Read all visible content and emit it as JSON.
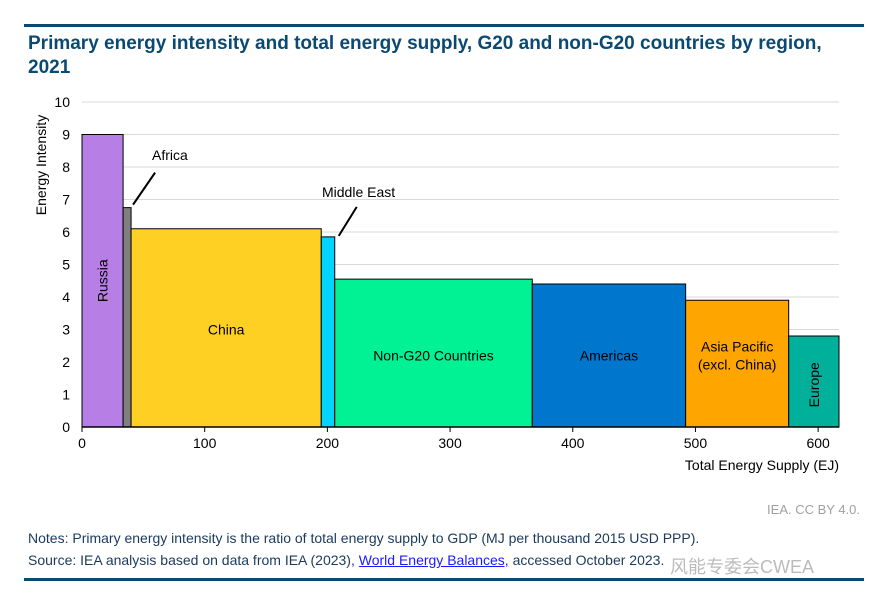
{
  "header": {
    "title": "Primary energy intensity and total energy supply, G20 and non-G20 countries by region, 2021"
  },
  "chart_data": {
    "type": "bar",
    "subtype": "variable-width (marimekko)",
    "title": "Primary energy intensity and total energy supply, G20 and non-G20 countries by region, 2021",
    "xlabel": "Total Energy Supply (EJ)",
    "ylabel": "Energy Intensity",
    "xlim": [
      0,
      617
    ],
    "ylim": [
      0,
      10
    ],
    "xticks": [
      0,
      100,
      200,
      300,
      400,
      500,
      600
    ],
    "yticks": [
      0,
      1,
      2,
      3,
      4,
      5,
      6,
      7,
      8,
      9,
      10
    ],
    "grid": "horizontal",
    "bars": [
      {
        "name": "Russia",
        "label": "Russia",
        "x0": 0,
        "x1": 33.5,
        "value": 9.0,
        "color": "#b77fe6",
        "label_mode": "vertical"
      },
      {
        "name": "Africa",
        "label": "Africa",
        "x0": 33.5,
        "x1": 40,
        "value": 6.75,
        "color": "#808080",
        "label_mode": "callout"
      },
      {
        "name": "China",
        "label": "China",
        "x0": 40,
        "x1": 195,
        "value": 6.1,
        "color": "#fdd023",
        "label_mode": "inside"
      },
      {
        "name": "Middle East",
        "label": "Middle East",
        "x0": 195,
        "x1": 206,
        "value": 5.85,
        "color": "#00d4ff",
        "label_mode": "callout"
      },
      {
        "name": "Non-G20 Countries",
        "label": "Non-G20 Countries",
        "x0": 206,
        "x1": 367,
        "value": 4.55,
        "color": "#00f294",
        "label_mode": "inside"
      },
      {
        "name": "Americas",
        "label": "Americas",
        "x0": 367,
        "x1": 492,
        "value": 4.4,
        "color": "#0077cc",
        "label_mode": "inside"
      },
      {
        "name": "Asia Pacific (excl. China)",
        "label": "Asia Pacific|(excl. China)",
        "x0": 492,
        "x1": 576,
        "value": 3.9,
        "color": "#ffa500",
        "label_mode": "inside"
      },
      {
        "name": "Europe",
        "label": "Europe",
        "x0": 576,
        "x1": 617,
        "value": 2.8,
        "color": "#00b09b",
        "label_mode": "vertical"
      }
    ]
  },
  "footer": {
    "credit": "IEA. CC BY 4.0.",
    "notes": "Notes: Primary energy intensity is the ratio of total energy supply to GDP (MJ per thousand 2015 USD PPP).",
    "source_prefix": "Source: IEA analysis based on data from IEA (2023), ",
    "source_link": "World Energy Balances,",
    "source_suffix": " accessed October 2023.",
    "watermark": "风能专委会CWEA"
  }
}
